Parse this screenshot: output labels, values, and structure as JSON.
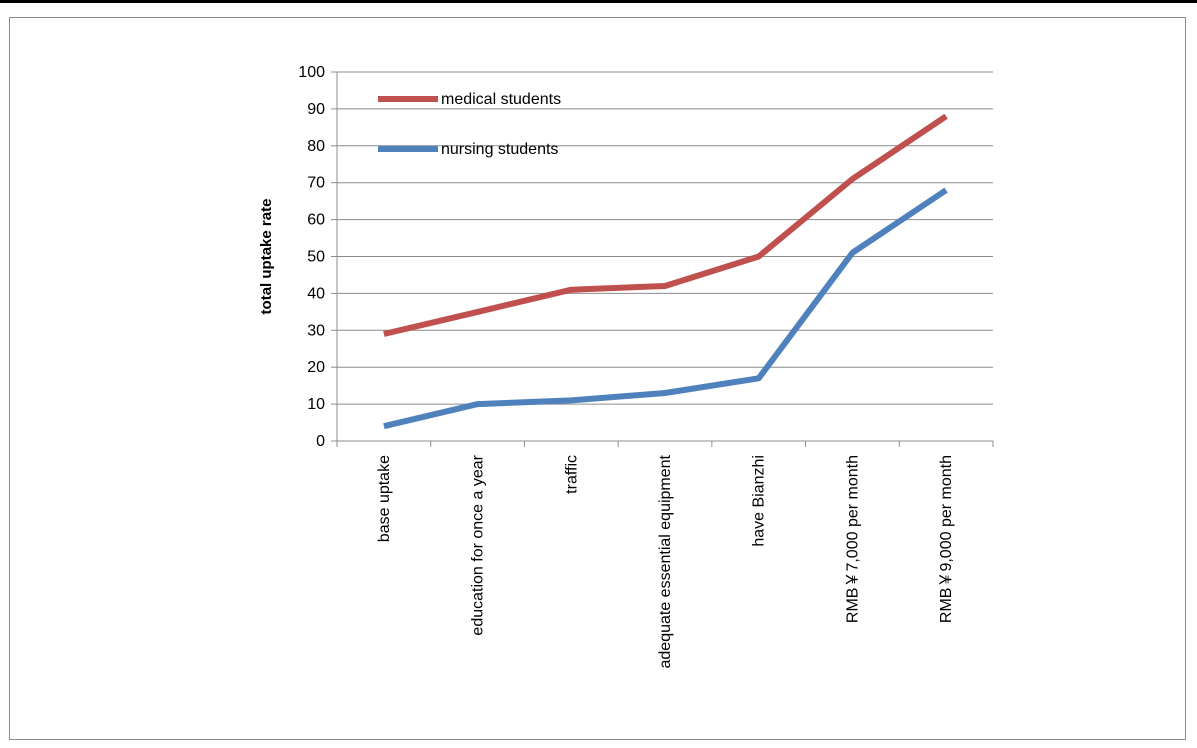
{
  "chart_data": {
    "type": "line",
    "title": "",
    "xlabel": "",
    "ylabel": "total uptake rate",
    "ylim": [
      0,
      100
    ],
    "yticks": [
      0,
      10,
      20,
      30,
      40,
      50,
      60,
      70,
      80,
      90,
      100
    ],
    "grid": true,
    "legend_position": "top-left",
    "categories": [
      "base uptake",
      "education for once a year",
      "traffic",
      "adequate essential equipment",
      "have Bianzhi",
      "RMB￥7,000 per month",
      "RMB￥9,000 per month"
    ],
    "series": [
      {
        "name": "medical students",
        "color": "#c0504d",
        "values": [
          29,
          35,
          41,
          42,
          50,
          71,
          88
        ]
      },
      {
        "name": "nursing students",
        "color": "#4f81bd",
        "values": [
          4,
          10,
          11,
          13,
          17,
          51,
          68
        ]
      }
    ]
  }
}
